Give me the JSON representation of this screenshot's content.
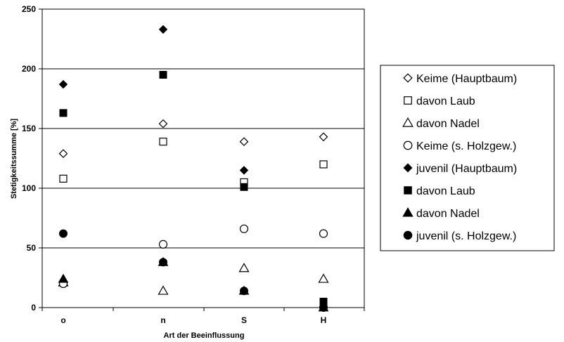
{
  "chart_data": {
    "type": "scatter",
    "title": "",
    "xlabel": "Art der Beeinflussung",
    "ylabel": "Stetigkeitssumme [%]",
    "categories": [
      "o",
      "n",
      "S",
      "H"
    ],
    "ylim": [
      0,
      250
    ],
    "yticks": [
      "0",
      "50",
      "100",
      "150",
      "200",
      "250"
    ],
    "grid": "horizontal",
    "legend_position": "right",
    "series": [
      {
        "name": "Keime (Hauptbaum)",
        "marker": "diamond-open",
        "values": [
          129,
          154,
          139,
          143
        ]
      },
      {
        "name": "davon Laub",
        "marker": "square-open",
        "values": [
          108,
          139,
          105,
          120
        ]
      },
      {
        "name": "davon Nadel",
        "marker": "triangle-open",
        "values": [
          21,
          14,
          33,
          24
        ]
      },
      {
        "name": "Keime (s. Holzgew.)",
        "marker": "circle-open",
        "values": [
          20,
          53,
          66,
          62
        ]
      },
      {
        "name": "juvenil (Hauptbaum)",
        "marker": "diamond-filled",
        "values": [
          187,
          233,
          115,
          1
        ]
      },
      {
        "name": "davon Laub",
        "marker": "square-filled",
        "values": [
          163,
          195,
          101,
          5
        ]
      },
      {
        "name": "davon Nadel",
        "marker": "triangle-filled",
        "values": [
          24,
          38,
          14,
          0
        ]
      },
      {
        "name": "juvenil (s. Holzgew.)",
        "marker": "circle-filled",
        "values": [
          62,
          38,
          14,
          0
        ]
      }
    ]
  }
}
